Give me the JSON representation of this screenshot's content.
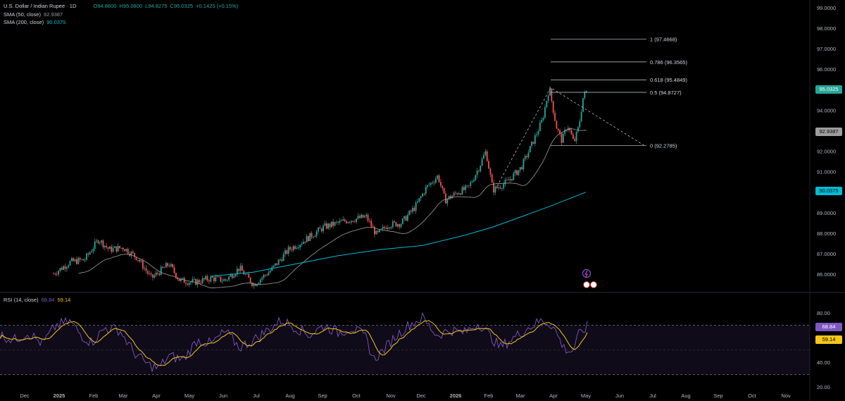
{
  "header": {
    "symbol": "U.S. Dollar / Indian Rupee · 1D",
    "ohlc": {
      "open": "O94.8800",
      "high": "H95.0800",
      "low": "L94.8275",
      "close": "C95.0325",
      "change": "+0.1425 (+0.15%)"
    },
    "sma50_label": "SMA (50, close)",
    "sma50_value": "92.9387",
    "sma200_label": "SMA (200, close)",
    "sma200_value": "90.0375"
  },
  "rsi": {
    "label": "RSI (14, close)",
    "value": "68.84",
    "ma_value": "59.14",
    "axis_ticks": [
      "80.00",
      "40.00",
      "20.00"
    ]
  },
  "price_axis": {
    "ticks": [
      "99.0000",
      "98.0000",
      "97.0000",
      "96.0000",
      "95.0000",
      "94.0000",
      "93.0000",
      "92.0000",
      "91.0000",
      "90.0000",
      "89.0000",
      "88.0000",
      "87.0000",
      "86.0000"
    ],
    "last_price_tag": "95.0325",
    "sma50_tag": "92.9387",
    "sma200_tag": "90.0375",
    "rsi_tag": "68.84",
    "rsi_ma_tag": "59.14"
  },
  "time_axis": {
    "labels": [
      "Dec",
      "2025",
      "Feb",
      "Mar",
      "Apr",
      "May",
      "Jun",
      "Jul",
      "Aug",
      "Sep",
      "Oct",
      "Nov",
      "Dec",
      "2026",
      "Feb",
      "Mar",
      "Apr",
      "May",
      "Jun",
      "Jul",
      "Aug",
      "Sep",
      "Oct",
      "Nov"
    ]
  },
  "fibonacci": {
    "levels": [
      {
        "ratio": "1",
        "label": "1 (97.4668)",
        "price": 97.4668
      },
      {
        "ratio": "0.786",
        "label": "0.786 (96.3565)",
        "price": 96.3565
      },
      {
        "ratio": "0.618",
        "label": "0.618 (95.4849)",
        "price": 95.4849
      },
      {
        "ratio": "0.5",
        "label": "0.5 (94.8727)",
        "price": 94.8727
      },
      {
        "ratio": "0",
        "label": "0 (92.2785)",
        "price": 92.2785
      }
    ]
  },
  "colors": {
    "up": "#26a69a",
    "down": "#ef5350",
    "sma50": "#9e9e9e",
    "sma200": "#00bcd4",
    "rsi": "#7e57c2",
    "rsi_ma": "#f5c518",
    "last_price_bg": "#26a69a"
  }
}
